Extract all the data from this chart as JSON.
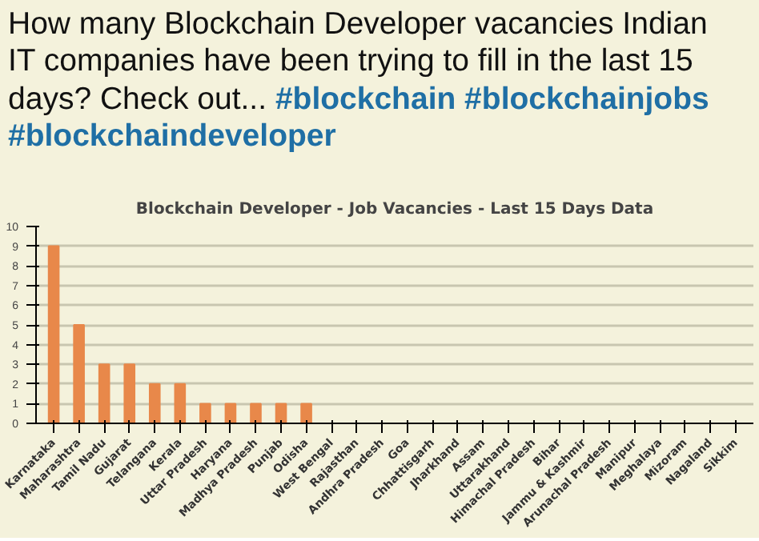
{
  "chart_data": {
    "type": "bar",
    "title": "Blockchain Developer - Job Vacancies - Last 15 Days Data",
    "annotations": [
      "How many Blockchain Developer vacancies Indian IT companies have been trying to fill in the last 15 days? Check out...",
      "#blockchain #blockchainjobs #blockchaindeveloper"
    ],
    "categories": [
      "Karnataka",
      "Maharashtra",
      "Tamil Nadu",
      "Gujarat",
      "Telangana",
      "Kerala",
      "Uttar Pradesh",
      "Haryana",
      "Madhya Pradesh",
      "Punjab",
      "Odisha",
      "West Bengal",
      "Rajasthan",
      "Andhra Pradesh",
      "Goa",
      "Chhattisgarh",
      "Jharkhand",
      "Assam",
      "Uttarakhand",
      "Himachal Pradesh",
      "Bihar",
      "Jammu & Kashmir",
      "Arunachal Pradesh",
      "Manipur",
      "Meghalaya",
      "Mizoram",
      "Nagaland",
      "Sikkim"
    ],
    "values": [
      9,
      5,
      3,
      3,
      2,
      2,
      1,
      1,
      1,
      1,
      1,
      0,
      0,
      0,
      0,
      0,
      0,
      0,
      0,
      0,
      0,
      0,
      0,
      0,
      0,
      0,
      0,
      0
    ],
    "color": "#e8884a",
    "ylim": [
      0,
      10
    ],
    "yticks": [
      0,
      1,
      2,
      3,
      4,
      5,
      6,
      7,
      8,
      9,
      10
    ],
    "grid": "y"
  }
}
